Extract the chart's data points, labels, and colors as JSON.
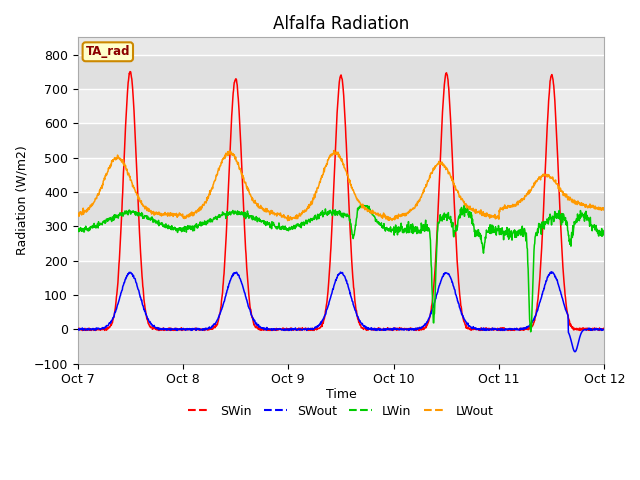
{
  "title": "Alfalfa Radiation",
  "xlabel": "Time",
  "ylabel": "Radiation (W/m2)",
  "ylim": [
    -100,
    850
  ],
  "yticks": [
    -100,
    0,
    100,
    200,
    300,
    400,
    500,
    600,
    700,
    800
  ],
  "xtick_labels": [
    "Oct 7",
    "Oct 8",
    "Oct 9",
    "Oct 10",
    "Oct 11",
    "Oct 12"
  ],
  "colors": {
    "SWin": "#ff0000",
    "SWout": "#0000ff",
    "LWin": "#00cc00",
    "LWout": "#ff9900"
  },
  "legend_label": "TA_rad",
  "legend_box_bg": "#ffffcc",
  "legend_box_border": "#cc8800",
  "fig_bg": "#ffffff",
  "plot_bg": "#e8e8e8",
  "title_fontsize": 12,
  "axis_fontsize": 9,
  "band_colors": [
    "#e0e0e0",
    "#ececec"
  ]
}
